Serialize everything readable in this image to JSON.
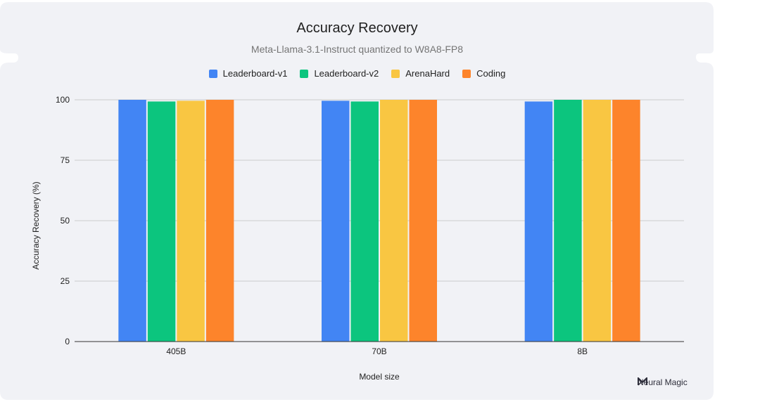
{
  "brand": {
    "name": "Neural Magic",
    "icon": "neural-magic-logo-icon"
  },
  "colors": {
    "background": "#f1f2f6",
    "gridline": "#cccccc",
    "axis": "#333333"
  },
  "chart_data": {
    "type": "bar",
    "title": "Accuracy Recovery",
    "subtitle": "Meta-Llama-3.1-Instruct quantized to W8A8-FP8",
    "xlabel": "Model size",
    "ylabel": "Accuracy Recovery (%)",
    "categories": [
      "405B",
      "70B",
      "8B"
    ],
    "ylim": [
      0,
      100
    ],
    "yticks": [
      0,
      25,
      50,
      75,
      100
    ],
    "grid": true,
    "legend_position": "top",
    "series": [
      {
        "name": "Leaderboard-v1",
        "color": "#4285f4",
        "values": [
          100.0,
          99.6,
          99.3
        ]
      },
      {
        "name": "Leaderboard-v2",
        "color": "#0cc57e",
        "values": [
          99.3,
          99.3,
          100.0
        ]
      },
      {
        "name": "ArenaHard",
        "color": "#f9c642",
        "values": [
          99.6,
          100.0,
          100.0
        ]
      },
      {
        "name": "Coding",
        "color": "#fd842b",
        "values": [
          100.0,
          100.0,
          100.0
        ]
      }
    ]
  }
}
